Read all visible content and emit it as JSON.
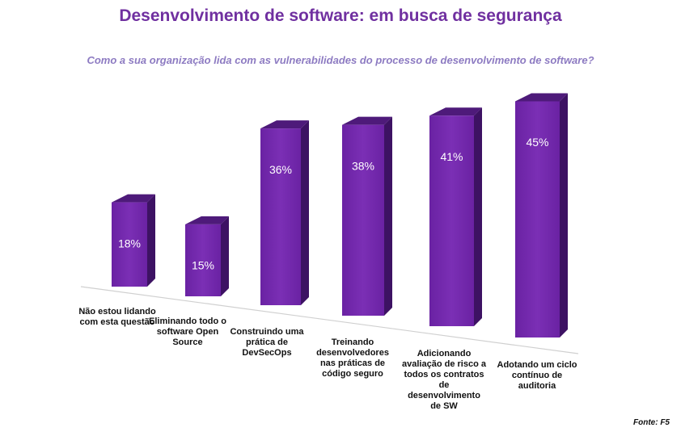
{
  "chart_data": {
    "type": "bar3d",
    "title": "Desenvolvimento de software: em busca de segurança",
    "subtitle": "Como a sua organização lida com as vulnerabilidades do processo de desenvolvimento de software?",
    "categories": [
      "Não estou lidando com esta questão",
      "Eliminando todo o software Open Source",
      "Construindo uma prática de DevSecOps",
      "Treinando desenvolvedores nas práticas de código seguro",
      "Adicionando avaliação de risco a todos os contratos de desenvolvimento de SW",
      "Adotando um ciclo contínuo de auditoria"
    ],
    "values": [
      18,
      15,
      36,
      38,
      41,
      45
    ],
    "value_labels": [
      "18%",
      "15%",
      "36%",
      "38%",
      "41%",
      "45%"
    ],
    "color": "#7b2fb5",
    "ylim": [
      0,
      50
    ],
    "source": "Fonte: F5"
  }
}
